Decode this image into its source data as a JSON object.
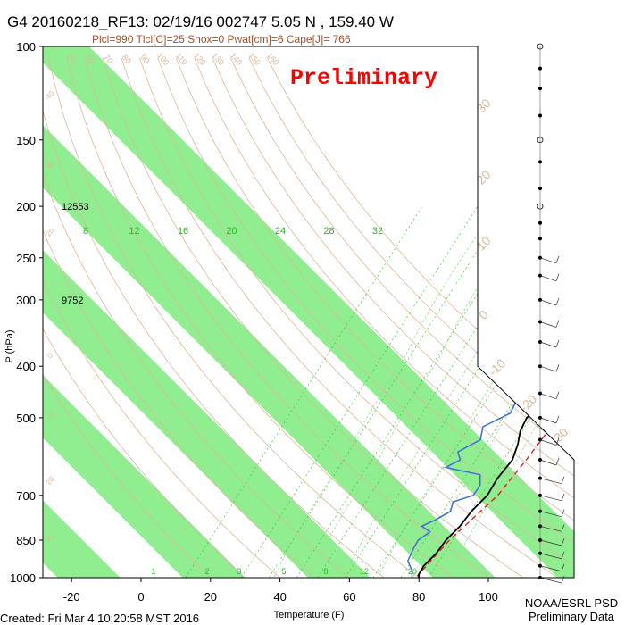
{
  "header": {
    "title": "G4 20160218_RF13: 02/19/16 002747   5.05 N , 159.40 W",
    "indices": "Plcl=990 Tlcl[C]=25 Shox=0 Pwat[cm]=6 Cape[J]= 766",
    "stamp": "Preliminary"
  },
  "footer": {
    "created": "Created: Fri Mar  4 10:20:58 MST 2016",
    "source_line1": "NOAA/ESRL PSD",
    "source_line2": "Preliminary Data"
  },
  "colors": {
    "band": "#90ee90",
    "temperature": "#000000",
    "dewpoint": "#3b6fd6",
    "parcel": "#e01010",
    "dry_adiabat": "#d9b99b",
    "moist_adiabat": "#9ad99a",
    "mixing_ratio": "#22bb22",
    "stamp": "#ff0000"
  },
  "chart_data": {
    "type": "skew-t",
    "xlabel": "Temperature (F)",
    "ylabel": "P (hPa)",
    "xlim": [
      -30,
      100
    ],
    "ylim": [
      1000,
      100
    ],
    "y_scale": "log-pressure",
    "x_ticks": [
      -20,
      0,
      20,
      40,
      60,
      80,
      100
    ],
    "pressure_ticks": [
      100,
      150,
      200,
      250,
      300,
      400,
      500,
      700,
      850,
      1000
    ],
    "height_labels": [
      {
        "p": 200,
        "text": "12553"
      },
      {
        "p": 300,
        "text": "9752"
      }
    ],
    "mixing_ratio_labels": {
      "p": 235,
      "values": [
        "8",
        "12",
        "16",
        "20",
        "24",
        "28",
        "32"
      ]
    },
    "mixing_ratio_bottom_labels": [
      "1",
      "2",
      "3",
      "5",
      "8",
      "12",
      "20"
    ],
    "dry_adiabat_labels": [
      "50",
      "60",
      "70",
      "80",
      "90",
      "100",
      "110",
      "120",
      "130",
      "140",
      "150",
      "160"
    ],
    "isotherm_labels": [
      "-30",
      "-20",
      "-10",
      "0",
      "10",
      "20",
      "30"
    ],
    "temperature": [
      {
        "p": 1000,
        "t": 80
      },
      {
        "p": 985,
        "t": 79
      },
      {
        "p": 950,
        "t": 78
      },
      {
        "p": 900,
        "t": 78
      },
      {
        "p": 850,
        "t": 77
      },
      {
        "p": 800,
        "t": 77
      },
      {
        "p": 750,
        "t": 76
      },
      {
        "p": 700,
        "t": 76
      },
      {
        "p": 650,
        "t": 74
      },
      {
        "p": 600,
        "t": 73
      },
      {
        "p": 560,
        "t": 70
      },
      {
        "p": 530,
        "t": 67
      },
      {
        "p": 500,
        "t": 65
      },
      {
        "p": 450,
        "t": 66
      },
      {
        "p": 400,
        "t": 65
      },
      {
        "p": 350,
        "t": 60
      },
      {
        "p": 320,
        "t": 55
      },
      {
        "p": 300,
        "t": 53
      },
      {
        "p": 270,
        "t": 49
      },
      {
        "p": 250,
        "t": 44
      },
      {
        "p": 230,
        "t": 41
      },
      {
        "p": 210,
        "t": 40
      },
      {
        "p": 185,
        "t": 36
      }
    ],
    "dewpoint": [
      {
        "p": 1000,
        "t": 78
      },
      {
        "p": 970,
        "t": 76
      },
      {
        "p": 930,
        "t": 72
      },
      {
        "p": 880,
        "t": 70
      },
      {
        "p": 850,
        "t": 69
      },
      {
        "p": 820,
        "t": 70
      },
      {
        "p": 800,
        "t": 66
      },
      {
        "p": 780,
        "t": 68
      },
      {
        "p": 750,
        "t": 70
      },
      {
        "p": 720,
        "t": 68
      },
      {
        "p": 700,
        "t": 72
      },
      {
        "p": 670,
        "t": 71
      },
      {
        "p": 640,
        "t": 68
      },
      {
        "p": 620,
        "t": 56
      },
      {
        "p": 600,
        "t": 58
      },
      {
        "p": 580,
        "t": 55
      },
      {
        "p": 550,
        "t": 58
      },
      {
        "p": 520,
        "t": 55
      },
      {
        "p": 490,
        "t": 59
      },
      {
        "p": 450,
        "t": 56
      },
      {
        "p": 400,
        "t": 52
      },
      {
        "p": 360,
        "t": 50
      },
      {
        "p": 330,
        "t": 45
      },
      {
        "p": 300,
        "t": 38
      },
      {
        "p": 280,
        "t": 32
      },
      {
        "p": 265,
        "t": 35
      },
      {
        "p": 250,
        "t": 31
      },
      {
        "p": 235,
        "t": 30
      },
      {
        "p": 220,
        "t": 28
      },
      {
        "p": 205,
        "t": 23
      }
    ],
    "parcel": [
      {
        "p": 1000,
        "t": 80
      },
      {
        "p": 990,
        "t": 79
      },
      {
        "p": 850,
        "t": 78
      },
      {
        "p": 700,
        "t": 79
      },
      {
        "p": 600,
        "t": 77
      },
      {
        "p": 500,
        "t": 74
      },
      {
        "p": 400,
        "t": 68
      },
      {
        "p": 350,
        "t": 63
      },
      {
        "p": 300,
        "t": 57
      },
      {
        "p": 250,
        "t": 50
      },
      {
        "p": 200,
        "t": 42
      },
      {
        "p": 185,
        "t": 39
      }
    ],
    "wind_levels": [
      100,
      110,
      120,
      135,
      150,
      165,
      185,
      200,
      215,
      230,
      250,
      270,
      300,
      330,
      360,
      400,
      450,
      500,
      550,
      600,
      650,
      700,
      750,
      800,
      850,
      900,
      950,
      1000
    ]
  }
}
